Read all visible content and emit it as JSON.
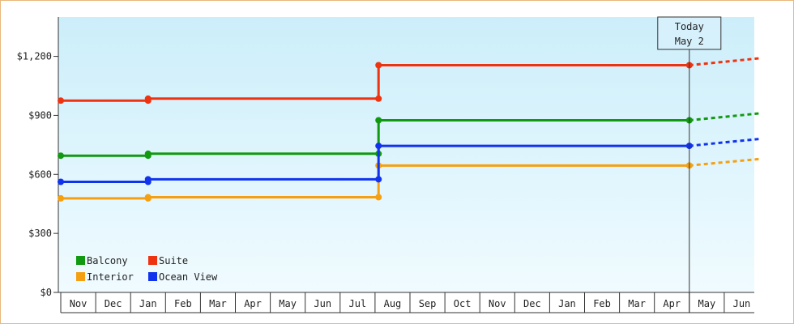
{
  "chart_data": {
    "type": "line",
    "title": "",
    "xlabel": "",
    "ylabel": "",
    "ylim": [
      0,
      1400
    ],
    "y_ticks": [
      0,
      300,
      600,
      900,
      1200
    ],
    "y_tick_labels": [
      "$0",
      "$300",
      "$600",
      "$900",
      "$1,200"
    ],
    "months": [
      "Nov",
      "Dec",
      "Jan",
      "Feb",
      "Mar",
      "Apr",
      "May",
      "Jun",
      "Jul",
      "Aug",
      "Sep",
      "Oct",
      "Nov",
      "Dec",
      "Jan",
      "Feb",
      "Mar",
      "Apr",
      "May",
      "Jun"
    ],
    "grid": false,
    "legend_position": "bottom-left",
    "today_marker": {
      "line1": "Today",
      "line2": "May 2",
      "x": 18.0
    },
    "series": [
      {
        "name": "Balcony",
        "color": "#119911",
        "points": [
          [
            0.0,
            695
          ],
          [
            2.5,
            695
          ],
          [
            2.5,
            705
          ],
          [
            9.1,
            705
          ],
          [
            9.1,
            875
          ],
          [
            18.0,
            875
          ]
        ],
        "projection": [
          [
            18.0,
            875
          ],
          [
            20.0,
            910
          ]
        ]
      },
      {
        "name": "Suite",
        "color": "#ee3311",
        "points": [
          [
            0.0,
            975
          ],
          [
            2.5,
            975
          ],
          [
            2.5,
            985
          ],
          [
            9.1,
            985
          ],
          [
            9.1,
            1155
          ],
          [
            18.0,
            1155
          ]
        ],
        "projection": [
          [
            18.0,
            1155
          ],
          [
            20.0,
            1190
          ]
        ]
      },
      {
        "name": "Interior",
        "color": "#f5a011",
        "points": [
          [
            0.0,
            478
          ],
          [
            2.5,
            478
          ],
          [
            2.5,
            484
          ],
          [
            9.1,
            484
          ],
          [
            9.1,
            645
          ],
          [
            18.0,
            645
          ]
        ],
        "projection": [
          [
            18.0,
            645
          ],
          [
            20.0,
            678
          ]
        ]
      },
      {
        "name": "Ocean View",
        "color": "#1133ee",
        "points": [
          [
            0.0,
            562
          ],
          [
            2.5,
            562
          ],
          [
            2.5,
            575
          ],
          [
            9.1,
            575
          ],
          [
            9.1,
            745
          ],
          [
            18.0,
            745
          ]
        ],
        "projection": [
          [
            18.0,
            745
          ],
          [
            20.0,
            780
          ]
        ]
      }
    ]
  }
}
